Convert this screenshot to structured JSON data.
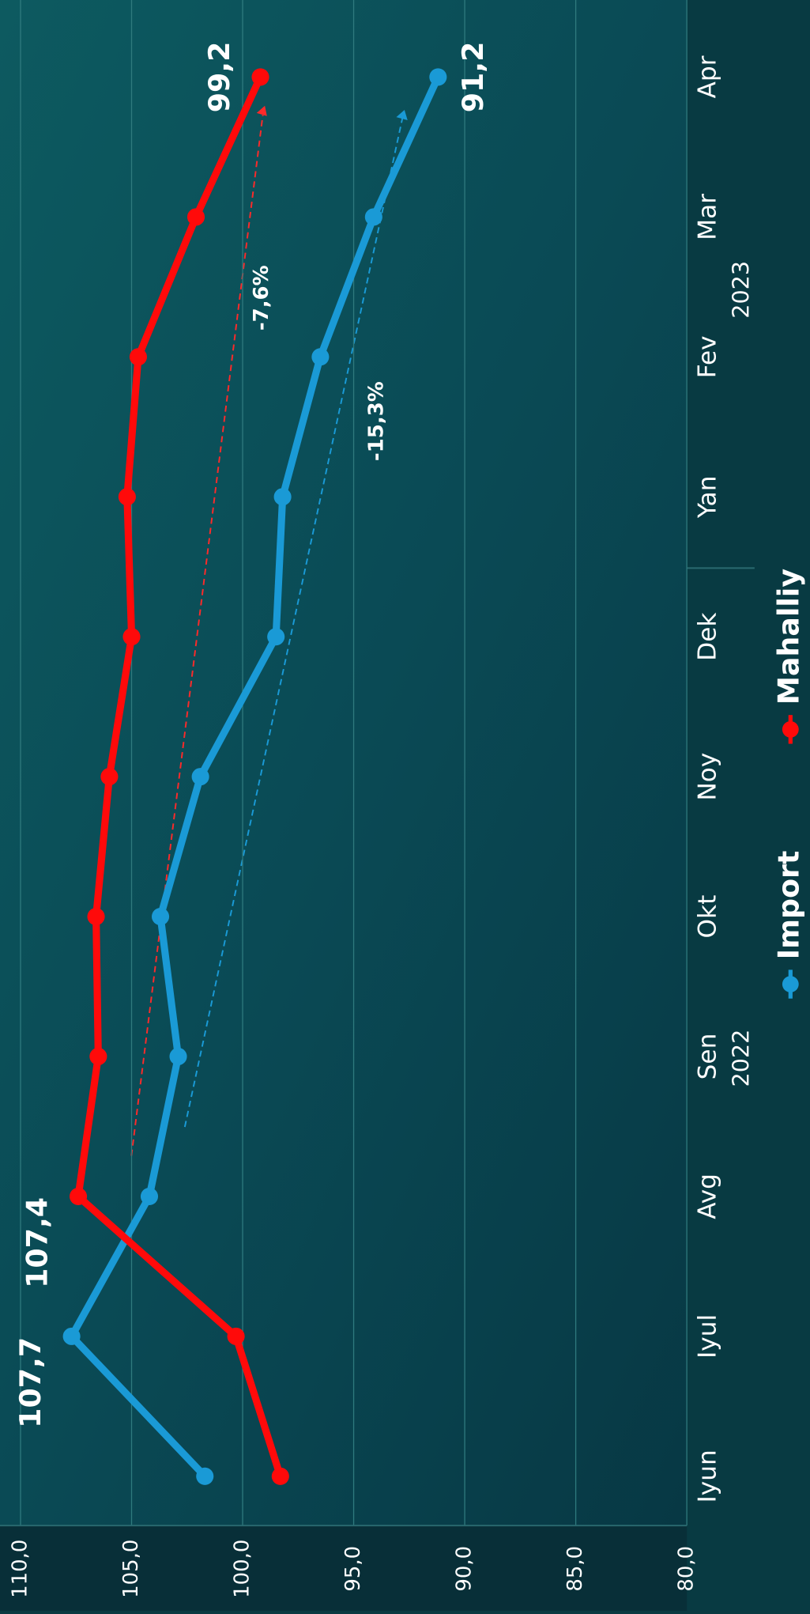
{
  "chart_data": {
    "type": "line",
    "categories": [
      "Iyun",
      "Iyul",
      "Avg",
      "Sen",
      "Okt",
      "Noy",
      "Dek",
      "Yan",
      "Fev",
      "Mar",
      "Apr"
    ],
    "year_labels": [
      "2022",
      "2023"
    ],
    "series": [
      {
        "name": "Import",
        "color": "#1a9ad6",
        "values": [
          101.7,
          107.7,
          104.2,
          102.9,
          103.7,
          101.9,
          98.5,
          98.2,
          96.5,
          94.1,
          91.2
        ],
        "value_labels": [
          null,
          "107,7",
          null,
          null,
          null,
          null,
          null,
          null,
          null,
          null,
          "91,2"
        ]
      },
      {
        "name": "Mahalliy",
        "color": "#ff0a0a",
        "values": [
          98.3,
          100.3,
          107.4,
          106.5,
          106.6,
          106.0,
          105.0,
          105.2,
          104.7,
          102.1,
          99.2
        ],
        "value_labels": [
          null,
          null,
          "107,4",
          null,
          null,
          null,
          null,
          null,
          null,
          null,
          "99,2"
        ]
      }
    ],
    "annotations": [
      "-7,6%",
      "-15,3%"
    ],
    "ylim": [
      80,
      110
    ],
    "yticks": [
      {
        "value": 80,
        "label": "80,0"
      },
      {
        "value": 85,
        "label": "85,0"
      },
      {
        "value": 90,
        "label": "90,0"
      },
      {
        "value": 95,
        "label": "95,0"
      },
      {
        "value": 100,
        "label": "100,0"
      },
      {
        "value": 105,
        "label": "105,0"
      },
      {
        "value": 110,
        "label": "110,0"
      }
    ],
    "grid": true
  }
}
